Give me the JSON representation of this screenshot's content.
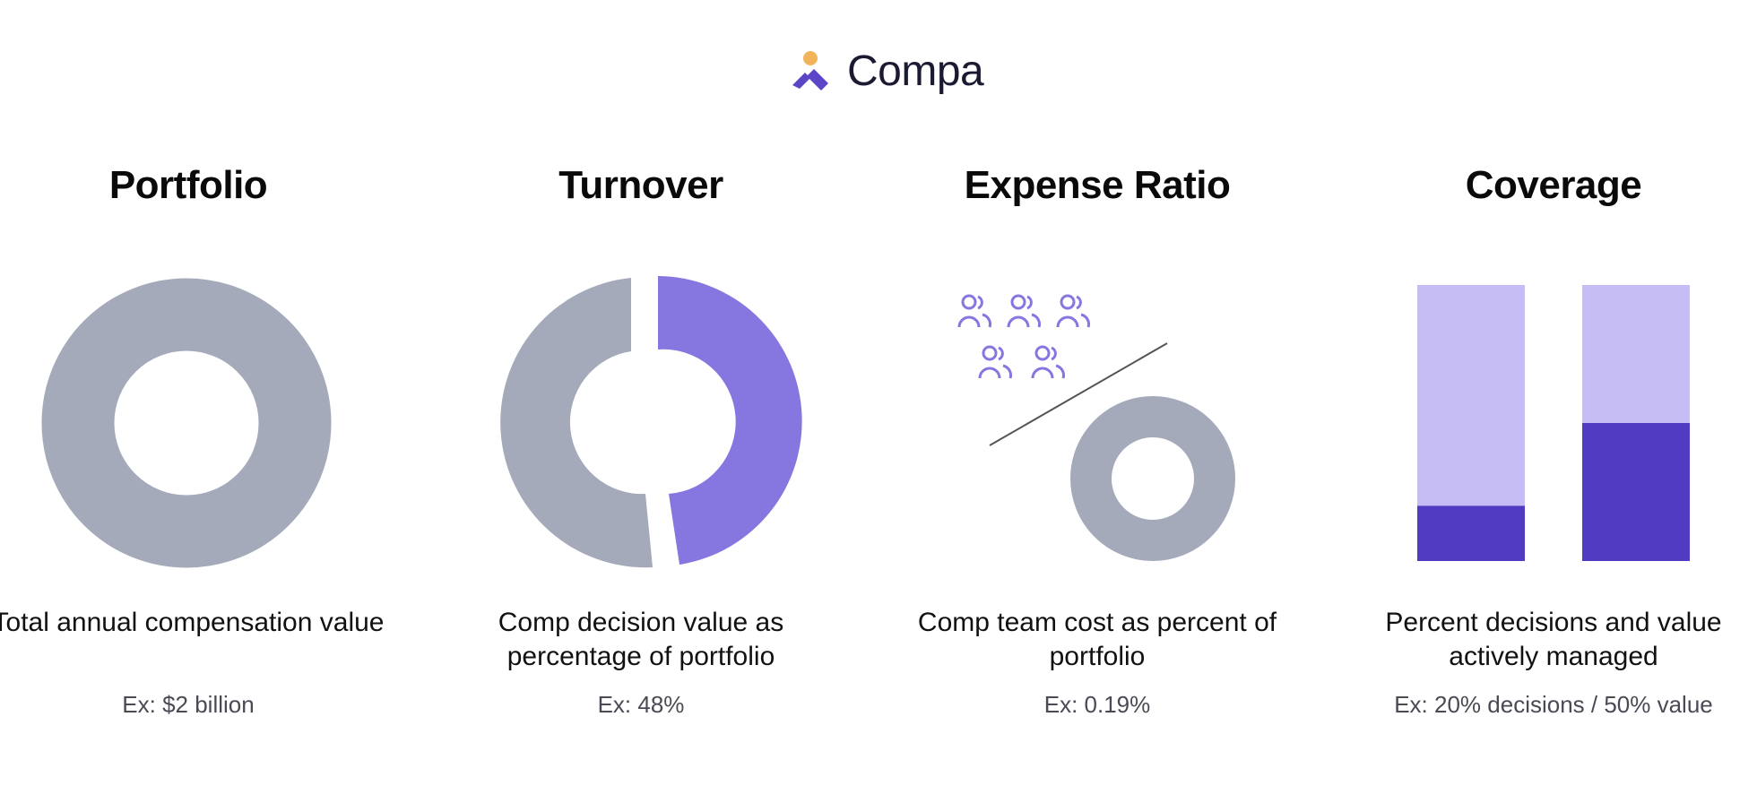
{
  "brand": {
    "name": "Compa",
    "colors": {
      "accent_dot": "#f2b45a",
      "accent_mark": "#5d45c7"
    }
  },
  "colors": {
    "gray": "#a5aabb",
    "purple": "#8676e0",
    "light_purple": "#c5bdf3",
    "dark_purple": "#503bc2",
    "line": "#555555"
  },
  "metrics": [
    {
      "title": "Portfolio",
      "description": "Total annual compensation value",
      "example": "Ex: $2 billion",
      "icon": "donut-full-icon"
    },
    {
      "title": "Turnover",
      "description": "Comp decision value as percentage of portfolio",
      "example": "Ex: 48%",
      "icon": "donut-split-icon",
      "share_percent": 48
    },
    {
      "title": "Expense Ratio",
      "description": "Comp team cost as percent of portfolio",
      "example": "Ex: 0.19%",
      "icon": "people-over-donut-icon",
      "people_count": 5
    },
    {
      "title": "Coverage",
      "description": "Percent decisions and value actively managed",
      "example": "Ex: 20% decisions / 50% value",
      "icon": "stacked-bars-icon",
      "bars": [
        {
          "label": "decisions",
          "percent": 20
        },
        {
          "label": "value",
          "percent": 50
        }
      ]
    }
  ]
}
